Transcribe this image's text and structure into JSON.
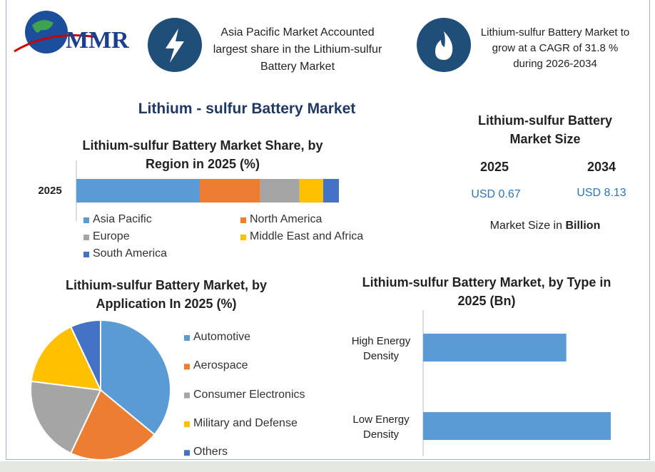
{
  "header": {
    "logo": "MMR",
    "highlight_1": "Asia Pacific Market Accounted largest share in the Lithium-sulfur Battery Market",
    "highlight_2": "Lithium-sulfur Battery Market to grow at a CAGR of 31.8 % during 2026-2034"
  },
  "title": "Lithium - sulfur Battery Market",
  "market_size": {
    "title": "Lithium-sulfur Battery Market Size",
    "years": [
      "2025",
      "2034"
    ],
    "values": [
      "USD 0.67",
      "USD 8.13"
    ],
    "note": "Market Size in",
    "unit": "Billion"
  },
  "chart_data": [
    {
      "type": "bar",
      "stacked": true,
      "orientation": "horizontal",
      "title": "Lithium-sulfur Battery Market Share, by Region in 2025 (%)",
      "categories": [
        "2025"
      ],
      "series": [
        {
          "name": "Asia Pacific",
          "color": "#5b9bd5",
          "values": [
            47
          ]
        },
        {
          "name": "North America",
          "color": "#ed7d31",
          "values": [
            23
          ]
        },
        {
          "name": "Europe",
          "color": "#a5a5a5",
          "values": [
            15
          ]
        },
        {
          "name": "Middle East and Africa",
          "color": "#ffc000",
          "values": [
            9
          ]
        },
        {
          "name": "South America",
          "color": "#4472c4",
          "values": [
            6
          ]
        }
      ]
    },
    {
      "type": "pie",
      "title": "Lithium-sulfur Battery Market, by Application In 2025 (%)",
      "categories": [
        "Automotive",
        "Aerospace",
        "Consumer Electronics",
        "Military and Defense",
        "Others"
      ],
      "values": [
        36,
        21,
        20,
        16,
        7
      ],
      "colors": [
        "#5b9bd5",
        "#ed7d31",
        "#a5a5a5",
        "#ffc000",
        "#4472c4"
      ]
    },
    {
      "type": "bar",
      "orientation": "horizontal",
      "title": "Lithium-sulfur Battery Market, by Type in 2025 (Bn)",
      "categories": [
        "High Energy Density",
        "Low Energy Density"
      ],
      "values": [
        0.29,
        0.38
      ],
      "color": "#5b9bd5"
    }
  ]
}
